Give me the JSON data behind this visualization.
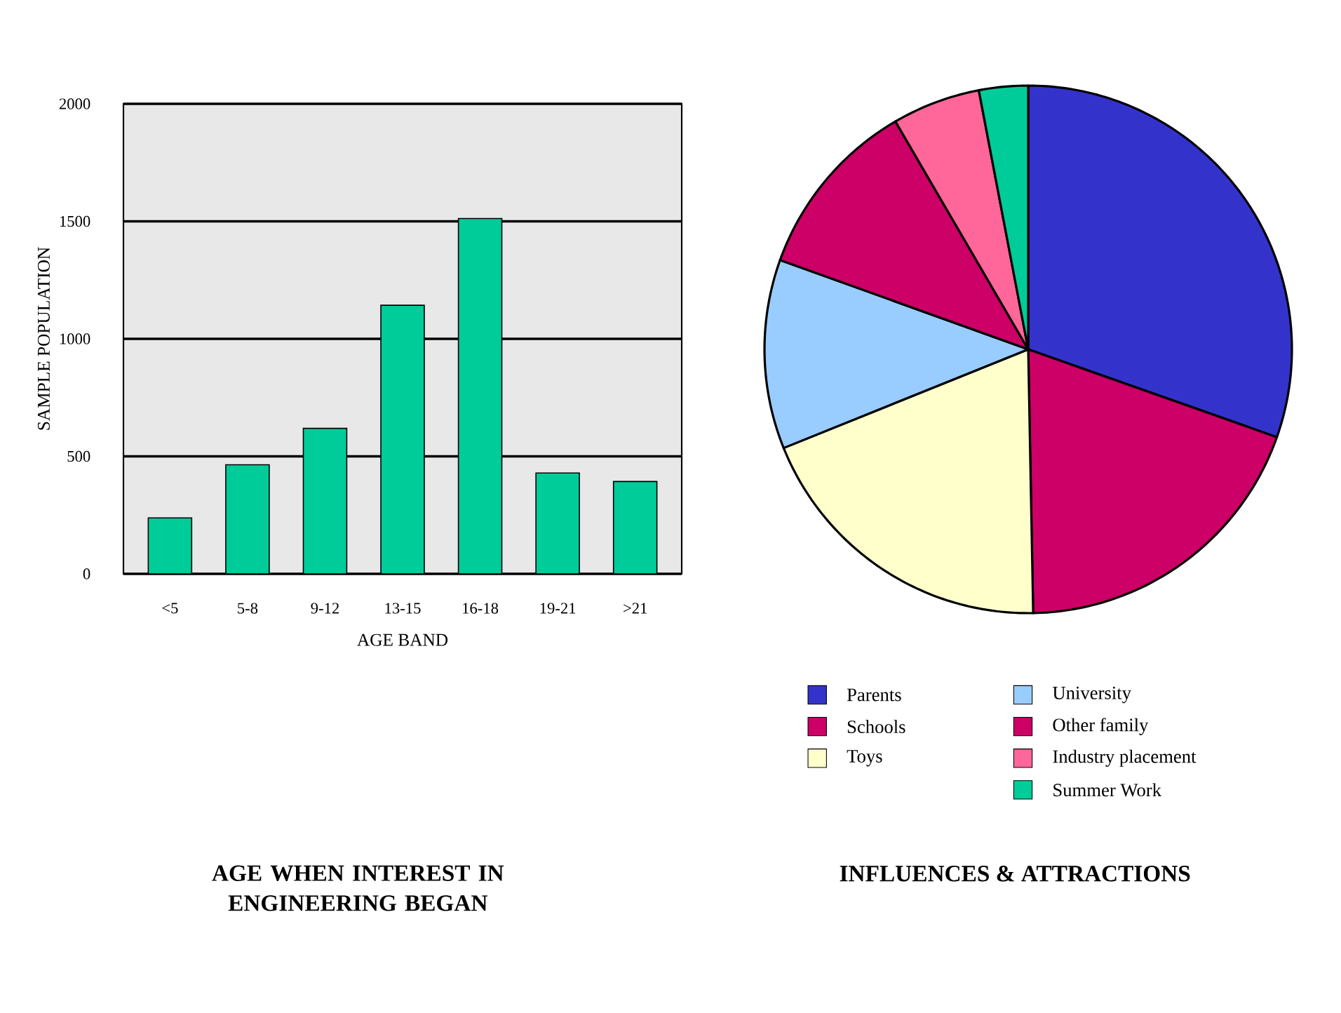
{
  "chart_data": [
    {
      "type": "bar",
      "title": "AGE WHEN INTEREST IN ENGINEERING BEGAN",
      "xlabel": "AGE BAND",
      "ylabel": "SAMPLE POPULATION",
      "categories": [
        "<5",
        "5-8",
        "9-12",
        "13-15",
        "16-18",
        "19-21",
        ">21"
      ],
      "values": [
        238,
        464,
        619,
        1143,
        1512,
        429,
        393
      ],
      "color": "#00cc99",
      "ylim": [
        0,
        2000
      ],
      "yticks": [
        0,
        500,
        1000,
        1500,
        2000
      ],
      "grid": "y"
    },
    {
      "type": "pie",
      "title": "INFLUENCES & ATTRACTIONS",
      "categories": [
        "Parents",
        "Schools",
        "Toys",
        "University",
        "Other family",
        "Industry placement",
        "Summer Work"
      ],
      "values": [
        30.4,
        19.3,
        19.2,
        11.6,
        11.1,
        5.4,
        3.0
      ],
      "colors": [
        "#3333cc",
        "#cc0066",
        "#ffffcc",
        "#99ccff",
        "#cc0066",
        "#ff6699",
        "#00cc99"
      ],
      "legend": "bottom"
    }
  ]
}
